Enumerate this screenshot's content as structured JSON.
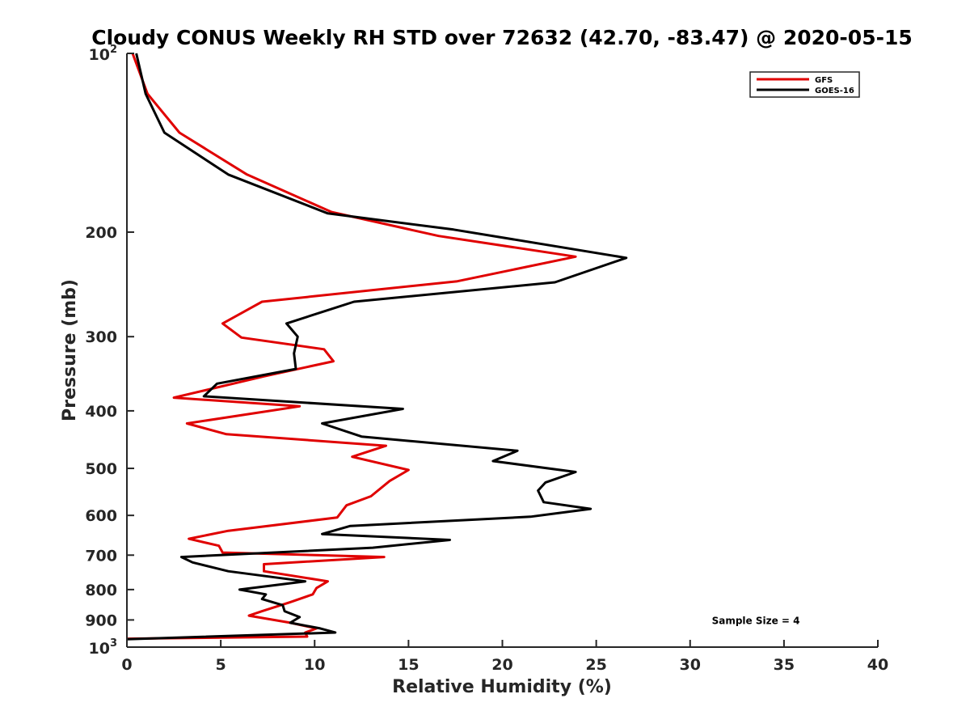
{
  "chart_data": {
    "type": "line",
    "title": "Cloudy CONUS Weekly RH STD over 72632 (42.70, -83.47) @ 2020-05-15",
    "xlabel": "Relative Humidity (%)",
    "ylabel": "Pressure (mb)",
    "xlim": [
      0,
      40
    ],
    "ylim": [
      100,
      1000
    ],
    "y_scale": "log",
    "y_reversed": true,
    "grid": false,
    "legend_position": "top-right",
    "x_ticks": [
      {
        "value": 0,
        "label": "0"
      },
      {
        "value": 5,
        "label": "5"
      },
      {
        "value": 10,
        "label": "10"
      },
      {
        "value": 15,
        "label": "15"
      },
      {
        "value": 20,
        "label": "20"
      },
      {
        "value": 25,
        "label": "25"
      },
      {
        "value": 30,
        "label": "30"
      },
      {
        "value": 35,
        "label": "35"
      },
      {
        "value": 40,
        "label": "40"
      }
    ],
    "y_ticks": [
      {
        "value": 100,
        "base": "10",
        "exp": "2"
      },
      {
        "value": 200,
        "label": "200"
      },
      {
        "value": 300,
        "label": "300"
      },
      {
        "value": 400,
        "label": "400"
      },
      {
        "value": 500,
        "label": "500"
      },
      {
        "value": 600,
        "label": "600"
      },
      {
        "value": 700,
        "label": "700"
      },
      {
        "value": 800,
        "label": "800"
      },
      {
        "value": 900,
        "label": "900"
      },
      {
        "value": 1000,
        "base": "10",
        "exp": "3"
      }
    ],
    "series": [
      {
        "name": "GFS",
        "color": "#e00000",
        "points": [
          [
            0.3,
            100
          ],
          [
            1.1,
            117
          ],
          [
            2.8,
            136
          ],
          [
            6.4,
            160
          ],
          [
            10.9,
            185
          ],
          [
            16.6,
            203
          ],
          [
            23.9,
            220
          ],
          [
            17.6,
            242
          ],
          [
            7.2,
            262
          ],
          [
            5.1,
            285
          ],
          [
            6.1,
            301
          ],
          [
            10.5,
            315
          ],
          [
            11.0,
            330
          ],
          [
            7.3,
            350
          ],
          [
            2.5,
            380
          ],
          [
            9.2,
            393
          ],
          [
            3.2,
            420
          ],
          [
            5.3,
            438
          ],
          [
            13.8,
            458
          ],
          [
            12.0,
            478
          ],
          [
            15.0,
            503
          ],
          [
            14.0,
            525
          ],
          [
            13.0,
            557
          ],
          [
            11.7,
            577
          ],
          [
            11.2,
            605
          ],
          [
            5.4,
            637
          ],
          [
            3.3,
            657
          ],
          [
            4.9,
            675
          ],
          [
            5.1,
            693
          ],
          [
            13.7,
            705
          ],
          [
            7.3,
            725
          ],
          [
            7.3,
            745
          ],
          [
            10.7,
            775
          ],
          [
            10.1,
            795
          ],
          [
            9.9,
            815
          ],
          [
            8.7,
            840
          ],
          [
            7.2,
            870
          ],
          [
            6.5,
            885
          ],
          [
            8.7,
            910
          ],
          [
            10.1,
            930
          ],
          [
            9.5,
            945
          ],
          [
            9.6,
            960
          ],
          [
            0.0,
            968
          ]
        ]
      },
      {
        "name": "GOES-16",
        "color": "#000000",
        "points": [
          [
            0.5,
            100
          ],
          [
            1.0,
            117
          ],
          [
            2.0,
            136
          ],
          [
            5.4,
            160
          ],
          [
            10.7,
            186
          ],
          [
            17.4,
            198
          ],
          [
            26.6,
            221
          ],
          [
            22.8,
            243
          ],
          [
            12.1,
            262
          ],
          [
            8.5,
            285
          ],
          [
            9.1,
            300
          ],
          [
            8.9,
            320
          ],
          [
            9.0,
            340
          ],
          [
            4.8,
            360
          ],
          [
            4.1,
            378
          ],
          [
            14.7,
            397
          ],
          [
            10.4,
            420
          ],
          [
            12.5,
            442
          ],
          [
            20.8,
            467
          ],
          [
            19.5,
            486
          ],
          [
            23.9,
            507
          ],
          [
            22.3,
            528
          ],
          [
            21.9,
            545
          ],
          [
            22.2,
            570
          ],
          [
            24.7,
            585
          ],
          [
            21.5,
            603
          ],
          [
            11.9,
            625
          ],
          [
            10.4,
            645
          ],
          [
            17.2,
            660
          ],
          [
            13.1,
            680
          ],
          [
            2.9,
            705
          ],
          [
            3.5,
            720
          ],
          [
            5.4,
            745
          ],
          [
            9.5,
            775
          ],
          [
            6.0,
            800
          ],
          [
            7.4,
            815
          ],
          [
            7.2,
            830
          ],
          [
            8.3,
            850
          ],
          [
            8.4,
            870
          ],
          [
            9.2,
            890
          ],
          [
            8.7,
            910
          ],
          [
            10.3,
            930
          ],
          [
            11.1,
            945
          ],
          [
            0.0,
            970
          ]
        ]
      }
    ],
    "annotations": [
      {
        "text": "Sample Size = 4",
        "x": 33.5,
        "y": 900
      }
    ]
  }
}
